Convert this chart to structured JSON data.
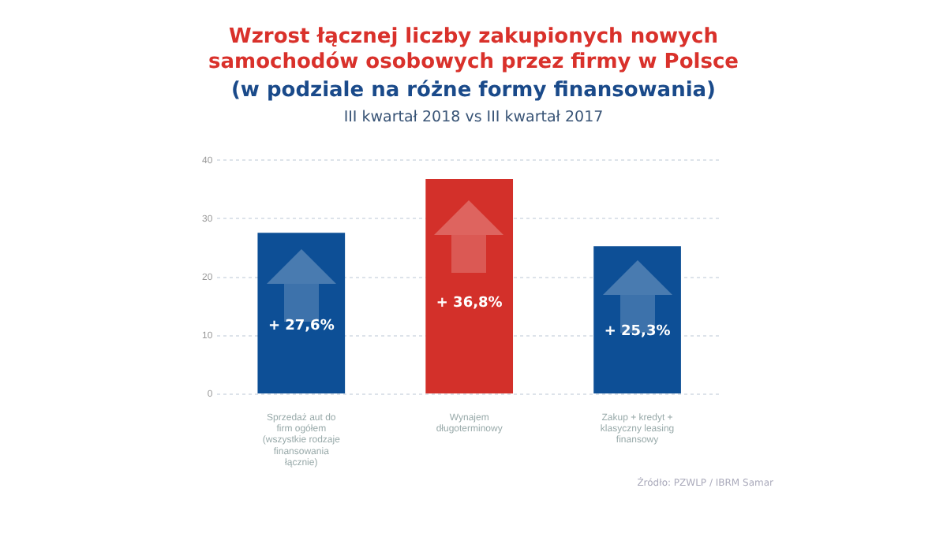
{
  "chart_data": {
    "type": "bar",
    "title": "Wzrost łącznej liczby zakupionych nowych samochodów osobowych przez firmy w Polsce",
    "subtitle": "(w podziale na różne formy finansowania)",
    "annotations": [
      "III kwartał 2018 vs III kwartał 2017",
      "Źródło: PZWLP / IBRM Samar"
    ],
    "categories": [
      "Sprzedaż aut do firm ogółem (wszystkie rodzaje finansowania łącznie)",
      "Wynajem długoterminowy",
      "Zakup + kredyt + klasyczny leasing finansowy"
    ],
    "values": [
      27.6,
      36.8,
      25.3
    ],
    "value_labels": [
      "+ 27,6%",
      "+ 36,8%",
      "+ 25,3%"
    ],
    "colors": [
      "#0d4f96",
      "#d3302a",
      "#0d4f96"
    ],
    "ylim": [
      0,
      40
    ],
    "yticks": [
      0,
      10,
      20,
      30,
      40
    ],
    "grid": "y",
    "legend": false
  }
}
